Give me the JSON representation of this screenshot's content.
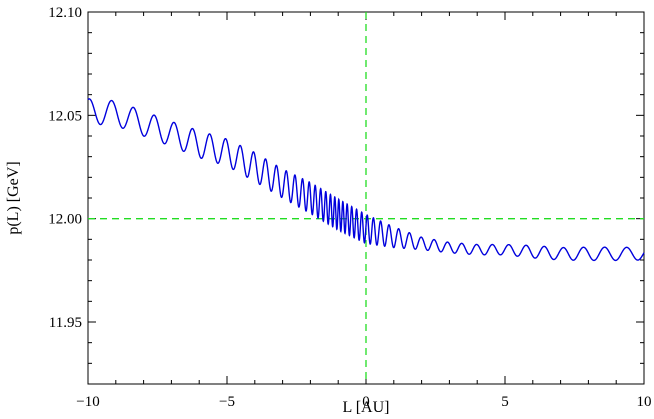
{
  "chart_data": {
    "type": "line",
    "title": "",
    "xlabel": "L   [AU]",
    "ylabel": "p(L)  [GeV]",
    "xlim": [
      -10,
      10
    ],
    "ylim": [
      11.92,
      12.1
    ],
    "x_ticks": [
      -10,
      -5,
      0,
      5,
      10
    ],
    "x_tick_labels": [
      "−10",
      "−5",
      "0",
      "5",
      "10"
    ],
    "y_ticks": [
      11.95,
      12.0,
      12.05,
      12.1
    ],
    "y_tick_labels": [
      "11.95",
      "12.00",
      "12.05",
      "12.10"
    ],
    "grid": false,
    "reference_lines": [
      {
        "orientation": "vertical",
        "value": 0,
        "style": "dashed",
        "color": "#22dd22"
      },
      {
        "orientation": "horizontal",
        "value": 12.0,
        "style": "dashed",
        "color": "#22dd22"
      }
    ],
    "series": [
      {
        "color": "#0000dd",
        "x": [
          -10,
          -9,
          -8,
          -7,
          -6,
          -5,
          -4,
          -3,
          -2,
          -1,
          0,
          1,
          2,
          3,
          4,
          5,
          6,
          7,
          8,
          9,
          10
        ],
        "y": [
          12.052,
          12.051,
          12.046,
          12.041,
          12.036,
          12.032,
          12.025,
          12.017,
          12.01,
          12.002,
          11.995,
          11.991,
          11.988,
          11.986,
          11.985,
          11.985,
          11.984,
          11.983,
          11.983,
          11.983,
          11.983
        ],
        "oscillation_amplitude": [
          0.006,
          0.006,
          0.006,
          0.006,
          0.0065,
          0.0065,
          0.007,
          0.007,
          0.0075,
          0.0075,
          0.007,
          0.005,
          0.003,
          0.0025,
          0.0025,
          0.0025,
          0.003,
          0.003,
          0.0032,
          0.0032,
          0.003
        ],
        "oscillation_period": [
          0.8,
          0.8,
          0.75,
          0.7,
          0.62,
          0.55,
          0.45,
          0.35,
          0.22,
          0.14,
          0.2,
          0.35,
          0.45,
          0.5,
          0.55,
          0.6,
          0.65,
          0.7,
          0.75,
          0.8,
          0.8
        ]
      }
    ]
  }
}
